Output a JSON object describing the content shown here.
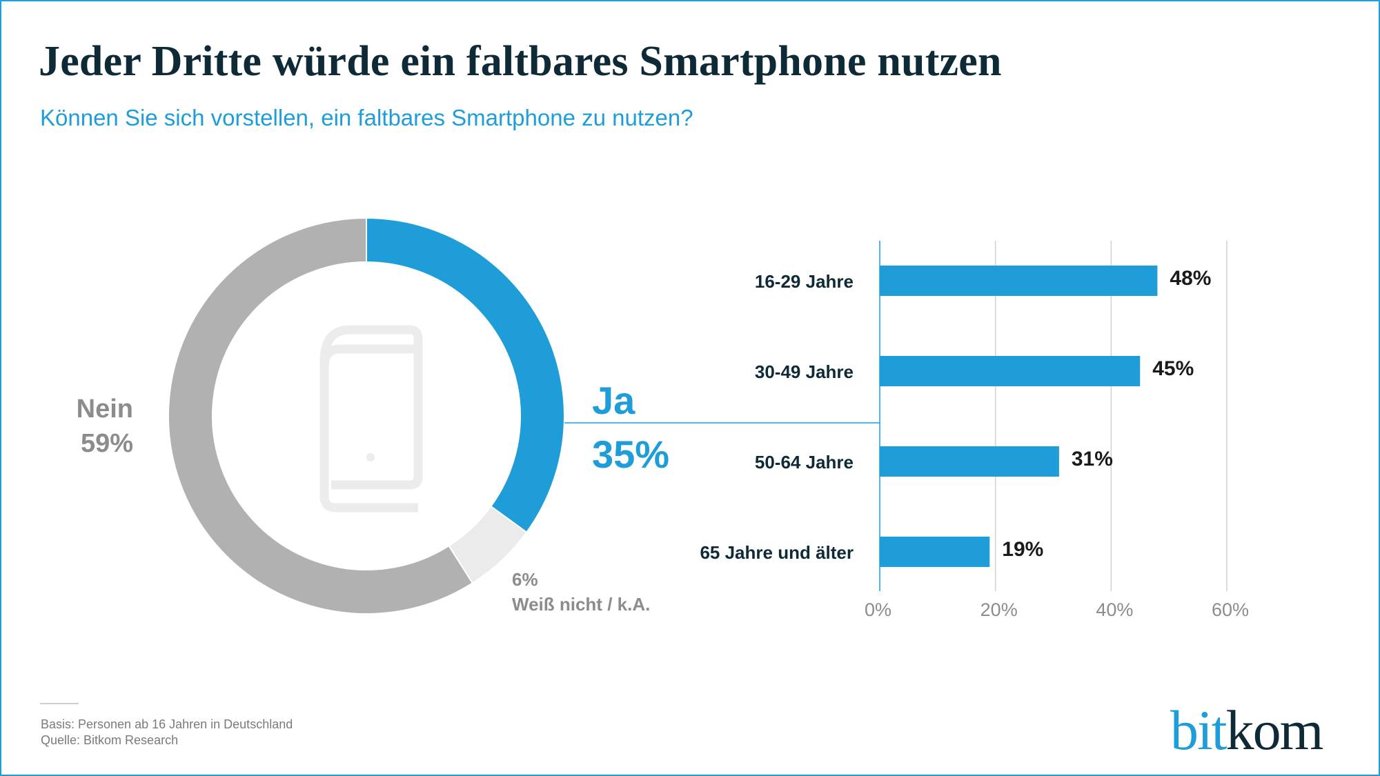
{
  "header": {
    "title": "Jeder Dritte würde ein faltbares Smartphone nutzen",
    "subtitle": "Können Sie sich vorstellen, ein faltbares Smartphone zu nutzen?"
  },
  "colors": {
    "accent": "#1e9dd8",
    "no": "#b1b1b1",
    "unknown": "#ebebeb",
    "title": "#0f2a37",
    "icon": "#ececec"
  },
  "chart_data": [
    {
      "type": "pie",
      "variant": "donut",
      "center_icon": "foldable-smartphone-icon",
      "slices": [
        {
          "name": "Ja",
          "value": 35,
          "label": "35%",
          "color": "#1e9dd8"
        },
        {
          "name": "Weiß nicht / k.A.",
          "value": 6,
          "label": "6%",
          "color": "#ebebeb"
        },
        {
          "name": "Nein",
          "value": 59,
          "label": "59%",
          "color": "#b1b1b1"
        }
      ]
    },
    {
      "type": "bar",
      "orientation": "horizontal",
      "categories": [
        "16-29 Jahre",
        "30-49 Jahre",
        "50-64 Jahre",
        "65 Jahre und älter"
      ],
      "values": [
        48,
        45,
        31,
        19
      ],
      "value_labels": [
        "48%",
        "45%",
        "31%",
        "19%"
      ],
      "xlim": [
        0,
        60
      ],
      "xticks": [
        "0%",
        "20%",
        "40%",
        "60%"
      ],
      "grid": true,
      "color": "#1e9dd8"
    }
  ],
  "footer": {
    "basis": "Basis: Personen ab 16 Jahren in Deutschland",
    "source": "Quelle: Bitkom Research",
    "logo": {
      "part1": "bit",
      "part2": "kom"
    }
  }
}
